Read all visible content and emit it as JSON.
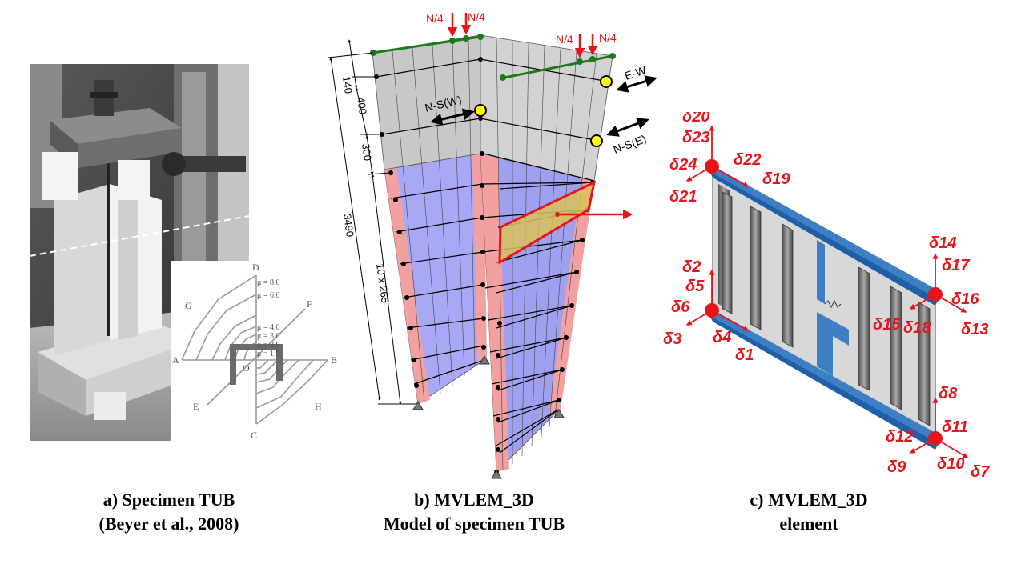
{
  "panel_a": {
    "caption_line1": "a) Specimen TUB",
    "caption_line2": "(Beyer et al., 2008)",
    "loading_pattern": {
      "points": [
        "A",
        "B",
        "C",
        "D",
        "E",
        "F",
        "G",
        "H",
        "O"
      ],
      "ductility_levels": [
        "μ = 1.0",
        "μ = 2.0",
        "μ = 3.0",
        "μ = 4.0",
        "μ = 6.0",
        "μ = 8.0"
      ]
    }
  },
  "panel_b": {
    "caption_line1": "b) MVLEM_3D",
    "caption_line2": "Model of specimen TUB",
    "loads": {
      "axial_1": "N/4",
      "axial_2": "N/4",
      "axial_3": "N/4",
      "axial_4": "N/4"
    },
    "actuators": {
      "ew": "E-W",
      "nsw": "N-S(W)",
      "nse": "N-S(E)"
    },
    "dimensions": {
      "d140": "140",
      "d400": "400",
      "d300": "300",
      "d3490": "3490",
      "d10x265": "10 x 265"
    }
  },
  "panel_c": {
    "caption_line1": "c) MVLEM_3D",
    "caption_line2": "element",
    "dof_labels": [
      "δ1",
      "δ2",
      "δ3",
      "δ4",
      "δ5",
      "δ6",
      "δ7",
      "δ8",
      "δ9",
      "δ10",
      "δ11",
      "δ12",
      "δ13",
      "δ14",
      "δ15",
      "δ16",
      "δ17",
      "δ18",
      "δ19",
      "δ20",
      "δ21",
      "δ22",
      "δ23",
      "δ24"
    ]
  },
  "colors": {
    "red": "#e8141c",
    "green": "#1a7a1a",
    "blue_panel": "#8080ff",
    "pink_panel": "#f08c8c",
    "element_blue": "#3c7fc4",
    "yellow": "#ffff00"
  }
}
